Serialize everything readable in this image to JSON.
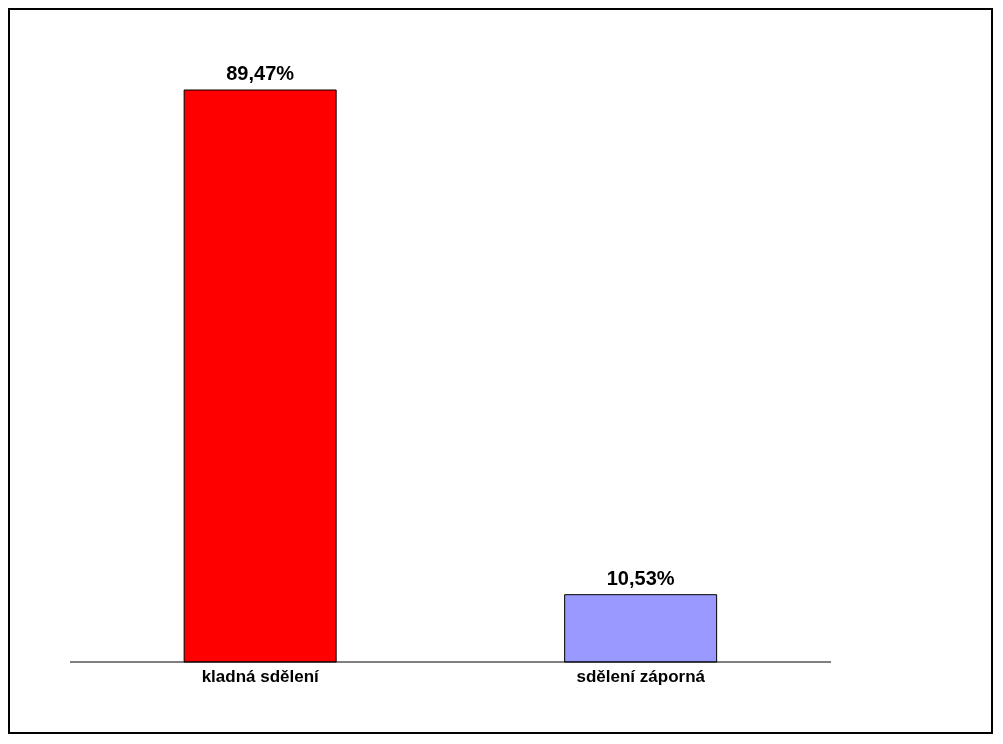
{
  "chart_data": {
    "type": "bar",
    "categories": [
      "kladná sdělení",
      "sdělení záporná"
    ],
    "values": [
      89.47,
      10.53
    ],
    "colors": [
      "#ff0000",
      "#9999ff"
    ],
    "value_labels": [
      "89,47%",
      "10,53%"
    ]
  }
}
